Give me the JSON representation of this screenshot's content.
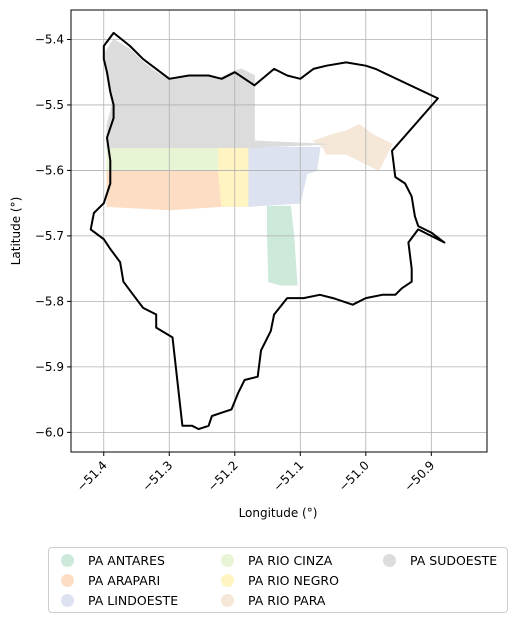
{
  "chart_data": {
    "type": "map",
    "xlabel": "Longitude (°)",
    "ylabel": "Latitude (°)",
    "xlim": [
      -51.45,
      -50.815
    ],
    "ylim": [
      -6.03,
      -5.355
    ],
    "xticks": [
      -51.4,
      -51.3,
      -51.2,
      -51.1,
      -51.0,
      -50.9
    ],
    "xtick_labels": [
      "−51.4",
      "−51.3",
      "−51.2",
      "−51.1",
      "−51.0",
      "−50.9"
    ],
    "yticks": [
      -5.4,
      -5.5,
      -5.6,
      -5.7,
      -5.8,
      -5.9,
      -6.0
    ],
    "ytick_labels": [
      "−5.4",
      "−5.5",
      "−5.6",
      "−5.7",
      "−5.8",
      "−5.9",
      "−6.0"
    ],
    "grid": true,
    "legend_location": "below",
    "boundary": {
      "color": "#000000",
      "lonlat": [
        [
          -51.4,
          -5.41
        ],
        [
          -51.385,
          -5.39
        ],
        [
          -51.36,
          -5.41
        ],
        [
          -51.34,
          -5.43
        ],
        [
          -51.32,
          -5.445
        ],
        [
          -51.3,
          -5.46
        ],
        [
          -51.27,
          -5.455
        ],
        [
          -51.24,
          -5.455
        ],
        [
          -51.22,
          -5.46
        ],
        [
          -51.2,
          -5.45
        ],
        [
          -51.17,
          -5.47
        ],
        [
          -51.14,
          -5.445
        ],
        [
          -51.12,
          -5.455
        ],
        [
          -51.1,
          -5.46
        ],
        [
          -51.08,
          -5.445
        ],
        [
          -51.06,
          -5.44
        ],
        [
          -51.03,
          -5.435
        ],
        [
          -51.0,
          -5.44
        ],
        [
          -50.985,
          -5.445
        ],
        [
          -50.89,
          -5.49
        ],
        [
          -50.96,
          -5.57
        ],
        [
          -50.955,
          -5.61
        ],
        [
          -50.94,
          -5.62
        ],
        [
          -50.93,
          -5.64
        ],
        [
          -50.925,
          -5.67
        ],
        [
          -50.92,
          -5.685
        ],
        [
          -50.9,
          -5.695
        ],
        [
          -50.88,
          -5.71
        ],
        [
          -50.92,
          -5.69
        ],
        [
          -50.935,
          -5.71
        ],
        [
          -50.93,
          -5.75
        ],
        [
          -50.93,
          -5.77
        ],
        [
          -50.945,
          -5.78
        ],
        [
          -50.955,
          -5.79
        ],
        [
          -50.975,
          -5.79
        ],
        [
          -51.0,
          -5.795
        ],
        [
          -51.02,
          -5.805
        ],
        [
          -51.05,
          -5.795
        ],
        [
          -51.07,
          -5.79
        ],
        [
          -51.095,
          -5.795
        ],
        [
          -51.12,
          -5.795
        ],
        [
          -51.14,
          -5.82
        ],
        [
          -51.145,
          -5.845
        ],
        [
          -51.16,
          -5.875
        ],
        [
          -51.165,
          -5.915
        ],
        [
          -51.185,
          -5.92
        ],
        [
          -51.195,
          -5.94
        ],
        [
          -51.205,
          -5.965
        ],
        [
          -51.22,
          -5.97
        ],
        [
          -51.235,
          -5.975
        ],
        [
          -51.24,
          -5.99
        ],
        [
          -51.255,
          -5.995
        ],
        [
          -51.265,
          -5.99
        ],
        [
          -51.28,
          -5.99
        ],
        [
          -51.295,
          -5.855
        ],
        [
          -51.32,
          -5.84
        ],
        [
          -51.32,
          -5.82
        ],
        [
          -51.34,
          -5.81
        ],
        [
          -51.355,
          -5.79
        ],
        [
          -51.37,
          -5.77
        ],
        [
          -51.375,
          -5.74
        ],
        [
          -51.39,
          -5.72
        ],
        [
          -51.4,
          -5.705
        ],
        [
          -51.42,
          -5.69
        ],
        [
          -51.415,
          -5.665
        ],
        [
          -51.4,
          -5.65
        ],
        [
          -51.39,
          -5.62
        ],
        [
          -51.39,
          -5.585
        ],
        [
          -51.395,
          -5.55
        ],
        [
          -51.385,
          -5.52
        ],
        [
          -51.385,
          -5.5
        ],
        [
          -51.39,
          -5.48
        ],
        [
          -51.395,
          -5.45
        ],
        [
          -51.4,
          -5.43
        ],
        [
          -51.4,
          -5.41
        ]
      ]
    },
    "series": [
      {
        "name": "PA ANTARES",
        "color": "#cce9da",
        "lonlat": [
          [
            -51.15,
            -5.655
          ],
          [
            -51.115,
            -5.655
          ],
          [
            -51.11,
            -5.7
          ],
          [
            -51.105,
            -5.775
          ],
          [
            -51.13,
            -5.775
          ],
          [
            -51.148,
            -5.77
          ],
          [
            -51.15,
            -5.7
          ]
        ]
      },
      {
        "name": "PA ARAPARI",
        "color": "#fdddc4",
        "lonlat": [
          [
            -51.395,
            -5.6
          ],
          [
            -51.225,
            -5.6
          ],
          [
            -51.22,
            -5.655
          ],
          [
            -51.3,
            -5.66
          ],
          [
            -51.395,
            -5.655
          ]
        ]
      },
      {
        "name": "PA LINDOESTE",
        "color": "#dde2f0",
        "lonlat": [
          [
            -51.18,
            -5.565
          ],
          [
            -51.07,
            -5.565
          ],
          [
            -51.075,
            -5.6
          ],
          [
            -51.09,
            -5.605
          ],
          [
            -51.1,
            -5.65
          ],
          [
            -51.18,
            -5.655
          ]
        ]
      },
      {
        "name": "PA RIO CINZA",
        "color": "#e7f5d5",
        "lonlat": [
          [
            -51.395,
            -5.565
          ],
          [
            -51.225,
            -5.565
          ],
          [
            -51.225,
            -5.6
          ],
          [
            -51.395,
            -5.6
          ]
        ]
      },
      {
        "name": "PA RIO NEGRO",
        "color": "#fff4c2",
        "lonlat": [
          [
            -51.225,
            -5.565
          ],
          [
            -51.18,
            -5.565
          ],
          [
            -51.18,
            -5.655
          ],
          [
            -51.22,
            -5.655
          ],
          [
            -51.225,
            -5.6
          ]
        ]
      },
      {
        "name": "PA RIO PARA",
        "color": "#f5e8d8",
        "lonlat": [
          [
            -51.065,
            -5.565
          ],
          [
            -51.08,
            -5.555
          ],
          [
            -51.05,
            -5.545
          ],
          [
            -51.03,
            -5.54
          ],
          [
            -51.01,
            -5.53
          ],
          [
            -50.99,
            -5.545
          ],
          [
            -50.96,
            -5.56
          ],
          [
            -50.98,
            -5.6
          ],
          [
            -51.0,
            -5.59
          ],
          [
            -51.03,
            -5.575
          ],
          [
            -51.06,
            -5.575
          ]
        ]
      },
      {
        "name": "PA SUDOESTE",
        "color": "#dcdcdc",
        "lonlat": [
          [
            -51.398,
            -5.42
          ],
          [
            -51.385,
            -5.4
          ],
          [
            -51.36,
            -5.415
          ],
          [
            -51.34,
            -5.435
          ],
          [
            -51.32,
            -5.45
          ],
          [
            -51.3,
            -5.462
          ],
          [
            -51.27,
            -5.455
          ],
          [
            -51.24,
            -5.455
          ],
          [
            -51.225,
            -5.46
          ],
          [
            -51.205,
            -5.45
          ],
          [
            -51.19,
            -5.445
          ],
          [
            -51.17,
            -5.455
          ],
          [
            -51.17,
            -5.5
          ],
          [
            -51.17,
            -5.555
          ],
          [
            -51.06,
            -5.56
          ],
          [
            -51.18,
            -5.565
          ],
          [
            -51.395,
            -5.565
          ],
          [
            -51.395,
            -5.53
          ],
          [
            -51.387,
            -5.5
          ],
          [
            -51.393,
            -5.47
          ],
          [
            -51.398,
            -5.44
          ]
        ]
      }
    ]
  }
}
